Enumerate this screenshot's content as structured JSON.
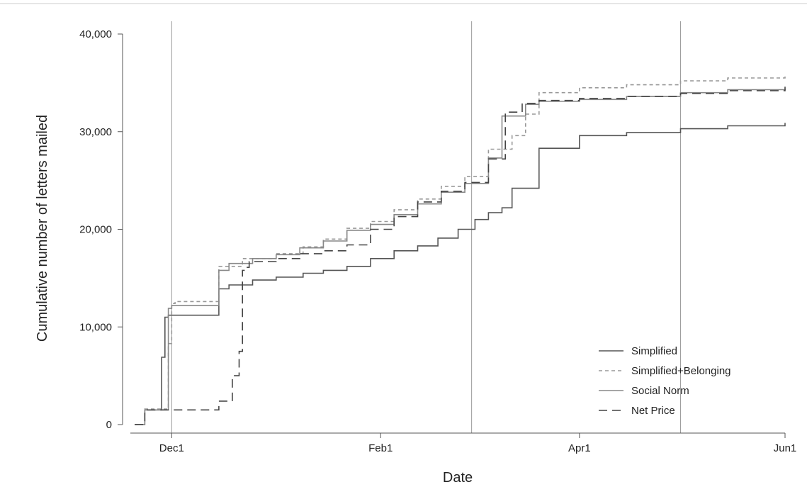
{
  "chart_data": {
    "type": "line",
    "title": "",
    "xlabel": "Date",
    "ylabel": "Cumulative number of letters mailed",
    "x_ticks": [
      "Dec1",
      "Feb1",
      "Apr1",
      "Jun1"
    ],
    "y_ticks": [
      "0",
      "10,000",
      "20,000",
      "30,000",
      "40,000"
    ],
    "y_tick_values": [
      0,
      10000,
      20000,
      30000,
      40000
    ],
    "xlim": [
      "2017-11-20",
      "2018-06-01"
    ],
    "ylim": [
      0,
      40000
    ],
    "vertical_reference_lines": [
      "2018-02-28",
      "2018-05-01"
    ],
    "grid": false,
    "legend_position": "bottom-right",
    "series": [
      {
        "name": "Simplified",
        "style": "solid",
        "color": "#555555",
        "x": [
          "2017-11-20",
          "2017-11-23",
          "2017-11-28",
          "2017-11-29",
          "2017-11-30",
          "2017-12-15",
          "2017-12-18",
          "2017-12-25",
          "2018-01-01",
          "2018-01-09",
          "2018-01-15",
          "2018-01-22",
          "2018-01-29",
          "2018-02-05",
          "2018-02-12",
          "2018-02-18",
          "2018-02-24",
          "2018-03-01",
          "2018-03-05",
          "2018-03-09",
          "2018-03-12",
          "2018-03-20",
          "2018-04-01",
          "2018-04-15",
          "2018-05-01",
          "2018-05-15",
          "2018-06-01"
        ],
        "y": [
          0,
          1500,
          6900,
          11000,
          11200,
          13900,
          14300,
          14800,
          15100,
          15500,
          15800,
          16200,
          17000,
          17800,
          18300,
          19100,
          20000,
          21000,
          21700,
          22200,
          24200,
          28300,
          29600,
          29900,
          30300,
          30600,
          30900
        ]
      },
      {
        "name": "Simplified+Belonging",
        "style": "dotted",
        "color": "#999999",
        "x": [
          "2017-11-20",
          "2017-11-23",
          "2017-11-30",
          "2017-12-01",
          "2017-12-02",
          "2017-12-15",
          "2017-12-22",
          "2018-01-01",
          "2018-01-09",
          "2018-01-15",
          "2018-01-22",
          "2018-01-29",
          "2018-02-05",
          "2018-02-12",
          "2018-02-19",
          "2018-02-26",
          "2018-03-05",
          "2018-03-12",
          "2018-03-16",
          "2018-03-20",
          "2018-04-01",
          "2018-04-15",
          "2018-05-01",
          "2018-05-15",
          "2018-06-01"
        ],
        "y": [
          0,
          1600,
          8300,
          12400,
          12600,
          16200,
          17000,
          17500,
          18200,
          19000,
          20100,
          20800,
          22000,
          23100,
          24400,
          25400,
          28200,
          29600,
          31800,
          34000,
          34500,
          34800,
          35200,
          35500,
          35800
        ]
      },
      {
        "name": "Social Norm",
        "style": "solid",
        "color": "#888888",
        "x": [
          "2017-11-20",
          "2017-11-23",
          "2017-11-30",
          "2017-12-01",
          "2017-12-15",
          "2017-12-18",
          "2017-12-25",
          "2018-01-01",
          "2018-01-08",
          "2018-01-15",
          "2018-01-22",
          "2018-01-29",
          "2018-02-05",
          "2018-02-12",
          "2018-02-19",
          "2018-02-26",
          "2018-03-05",
          "2018-03-09",
          "2018-03-16",
          "2018-03-20",
          "2018-04-01",
          "2018-04-15",
          "2018-05-01",
          "2018-05-15",
          "2018-06-01"
        ],
        "y": [
          0,
          1500,
          11900,
          12200,
          15800,
          16500,
          17000,
          17400,
          18100,
          18800,
          19900,
          20500,
          21500,
          22600,
          23800,
          24700,
          27300,
          31600,
          32800,
          33100,
          33300,
          33600,
          34000,
          34300,
          34400
        ]
      },
      {
        "name": "Net Price",
        "style": "dashed",
        "color": "#444444",
        "x": [
          "2017-11-20",
          "2017-11-23",
          "2017-12-15",
          "2017-12-19",
          "2017-12-21",
          "2017-12-22",
          "2017-12-23",
          "2017-12-24",
          "2018-01-01",
          "2018-01-08",
          "2018-01-15",
          "2018-01-22",
          "2018-01-29",
          "2018-02-05",
          "2018-02-12",
          "2018-02-19",
          "2018-02-26",
          "2018-03-05",
          "2018-03-10",
          "2018-03-15",
          "2018-03-20",
          "2018-04-01",
          "2018-04-15",
          "2018-05-01",
          "2018-05-15",
          "2018-06-01"
        ],
        "y": [
          0,
          1500,
          2400,
          5000,
          7500,
          15800,
          16100,
          16700,
          17000,
          17500,
          17800,
          18400,
          20000,
          21300,
          22800,
          23900,
          24800,
          27200,
          32000,
          32900,
          33200,
          33400,
          33600,
          33900,
          34200,
          34600
        ]
      }
    ]
  }
}
